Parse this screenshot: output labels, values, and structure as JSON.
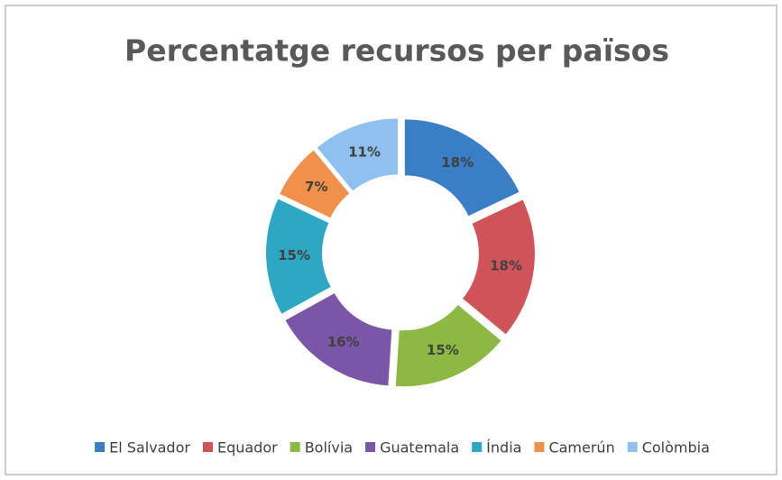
{
  "chart_data": {
    "type": "doughnut",
    "title": "Percentatge recursos per països",
    "categories": [
      "El Salvador",
      "Equador",
      "Bolívia",
      "Guatemala",
      "Índia",
      "Camerún",
      "Colòmbia"
    ],
    "values": [
      18,
      18,
      15,
      16,
      15,
      7,
      11
    ],
    "value_labels": [
      "18%",
      "18%",
      "15%",
      "16%",
      "15%",
      "7%",
      "11%"
    ],
    "colors": [
      "#3a7ec6",
      "#d0535a",
      "#8db843",
      "#7a55a8",
      "#2ea7c2",
      "#f0904a",
      "#8fc1ee"
    ],
    "legend": "bottom"
  }
}
